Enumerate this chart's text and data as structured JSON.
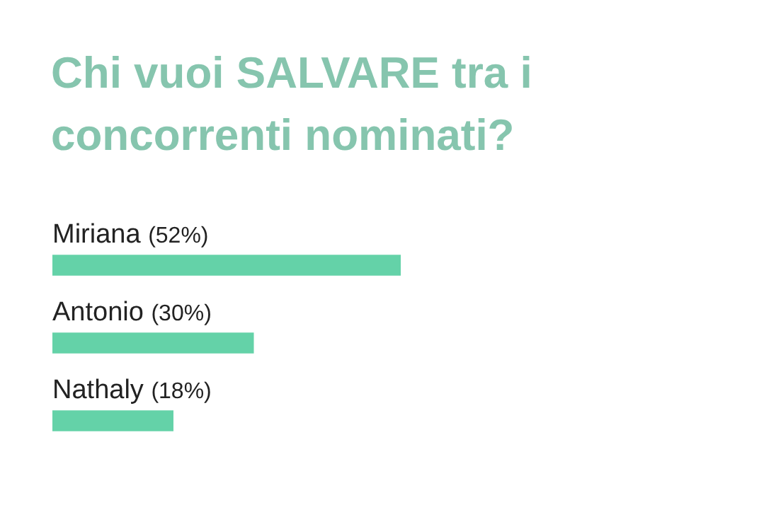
{
  "chart_data": {
    "type": "bar",
    "orientation": "horizontal",
    "title": "Chi vuoi SALVARE tra i concorrenti nominati?",
    "categories": [
      "Miriana",
      "Antonio",
      "Nathaly"
    ],
    "values": [
      52,
      30,
      18
    ],
    "value_labels": [
      "(52%)",
      "(30%)",
      "(18%)"
    ],
    "color": "#64d2a8"
  }
}
